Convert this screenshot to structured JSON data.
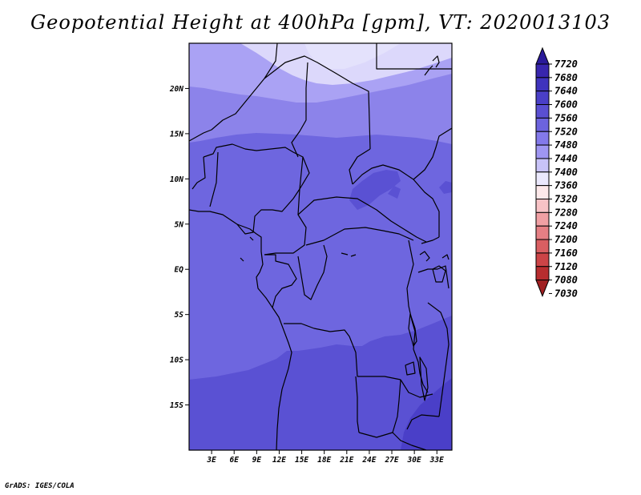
{
  "title": "Geopotential Height at 400hPa [gpm], VT: 2020013103",
  "footer": "GrADS: IGES/COLA",
  "map": {
    "region": "Central Africa",
    "lat_range": [
      -20,
      25
    ],
    "lon_range": [
      0,
      35
    ],
    "lat_labels": [
      "20N",
      "15N",
      "10N",
      "5N",
      "EQ",
      "5S",
      "10S",
      "15S"
    ],
    "lat_values": [
      20,
      15,
      10,
      5,
      0,
      -5,
      -10,
      -15
    ],
    "lon_labels": [
      "3E",
      "6E",
      "9E",
      "12E",
      "15E",
      "18E",
      "21E",
      "24E",
      "27E",
      "30E",
      "33E"
    ],
    "lon_values": [
      3,
      6,
      9,
      12,
      15,
      18,
      21,
      24,
      27,
      30,
      33
    ]
  },
  "colorbar": {
    "labels": [
      "7720",
      "7680",
      "7640",
      "7600",
      "7560",
      "7520",
      "7480",
      "7440",
      "7400",
      "7360",
      "7320",
      "7280",
      "7240",
      "7200",
      "7160",
      "7120",
      "7080",
      "7030"
    ],
    "colors": [
      "#2a1a9a",
      "#3826ae",
      "#3f33bd",
      "#4a3fc8",
      "#5a4fd2",
      "#6c63de",
      "#8379ea",
      "#9f96f2",
      "#c8c3f8",
      "#ebe9fd",
      "#fde9ea",
      "#f8c3c6",
      "#f1a0a4",
      "#e57f84",
      "#d95f62",
      "#cc4447",
      "#b72d2f",
      "#a01f21"
    ]
  },
  "field_colors": {
    "c7440": "#dcd8fb",
    "c7480": "#aaa2f4",
    "c7520": "#8c83ea",
    "c7560": "#6e66df",
    "c7600": "#5a51d3",
    "c7640": "#4a3fc8",
    "c7680": "#3b2fbb"
  }
}
